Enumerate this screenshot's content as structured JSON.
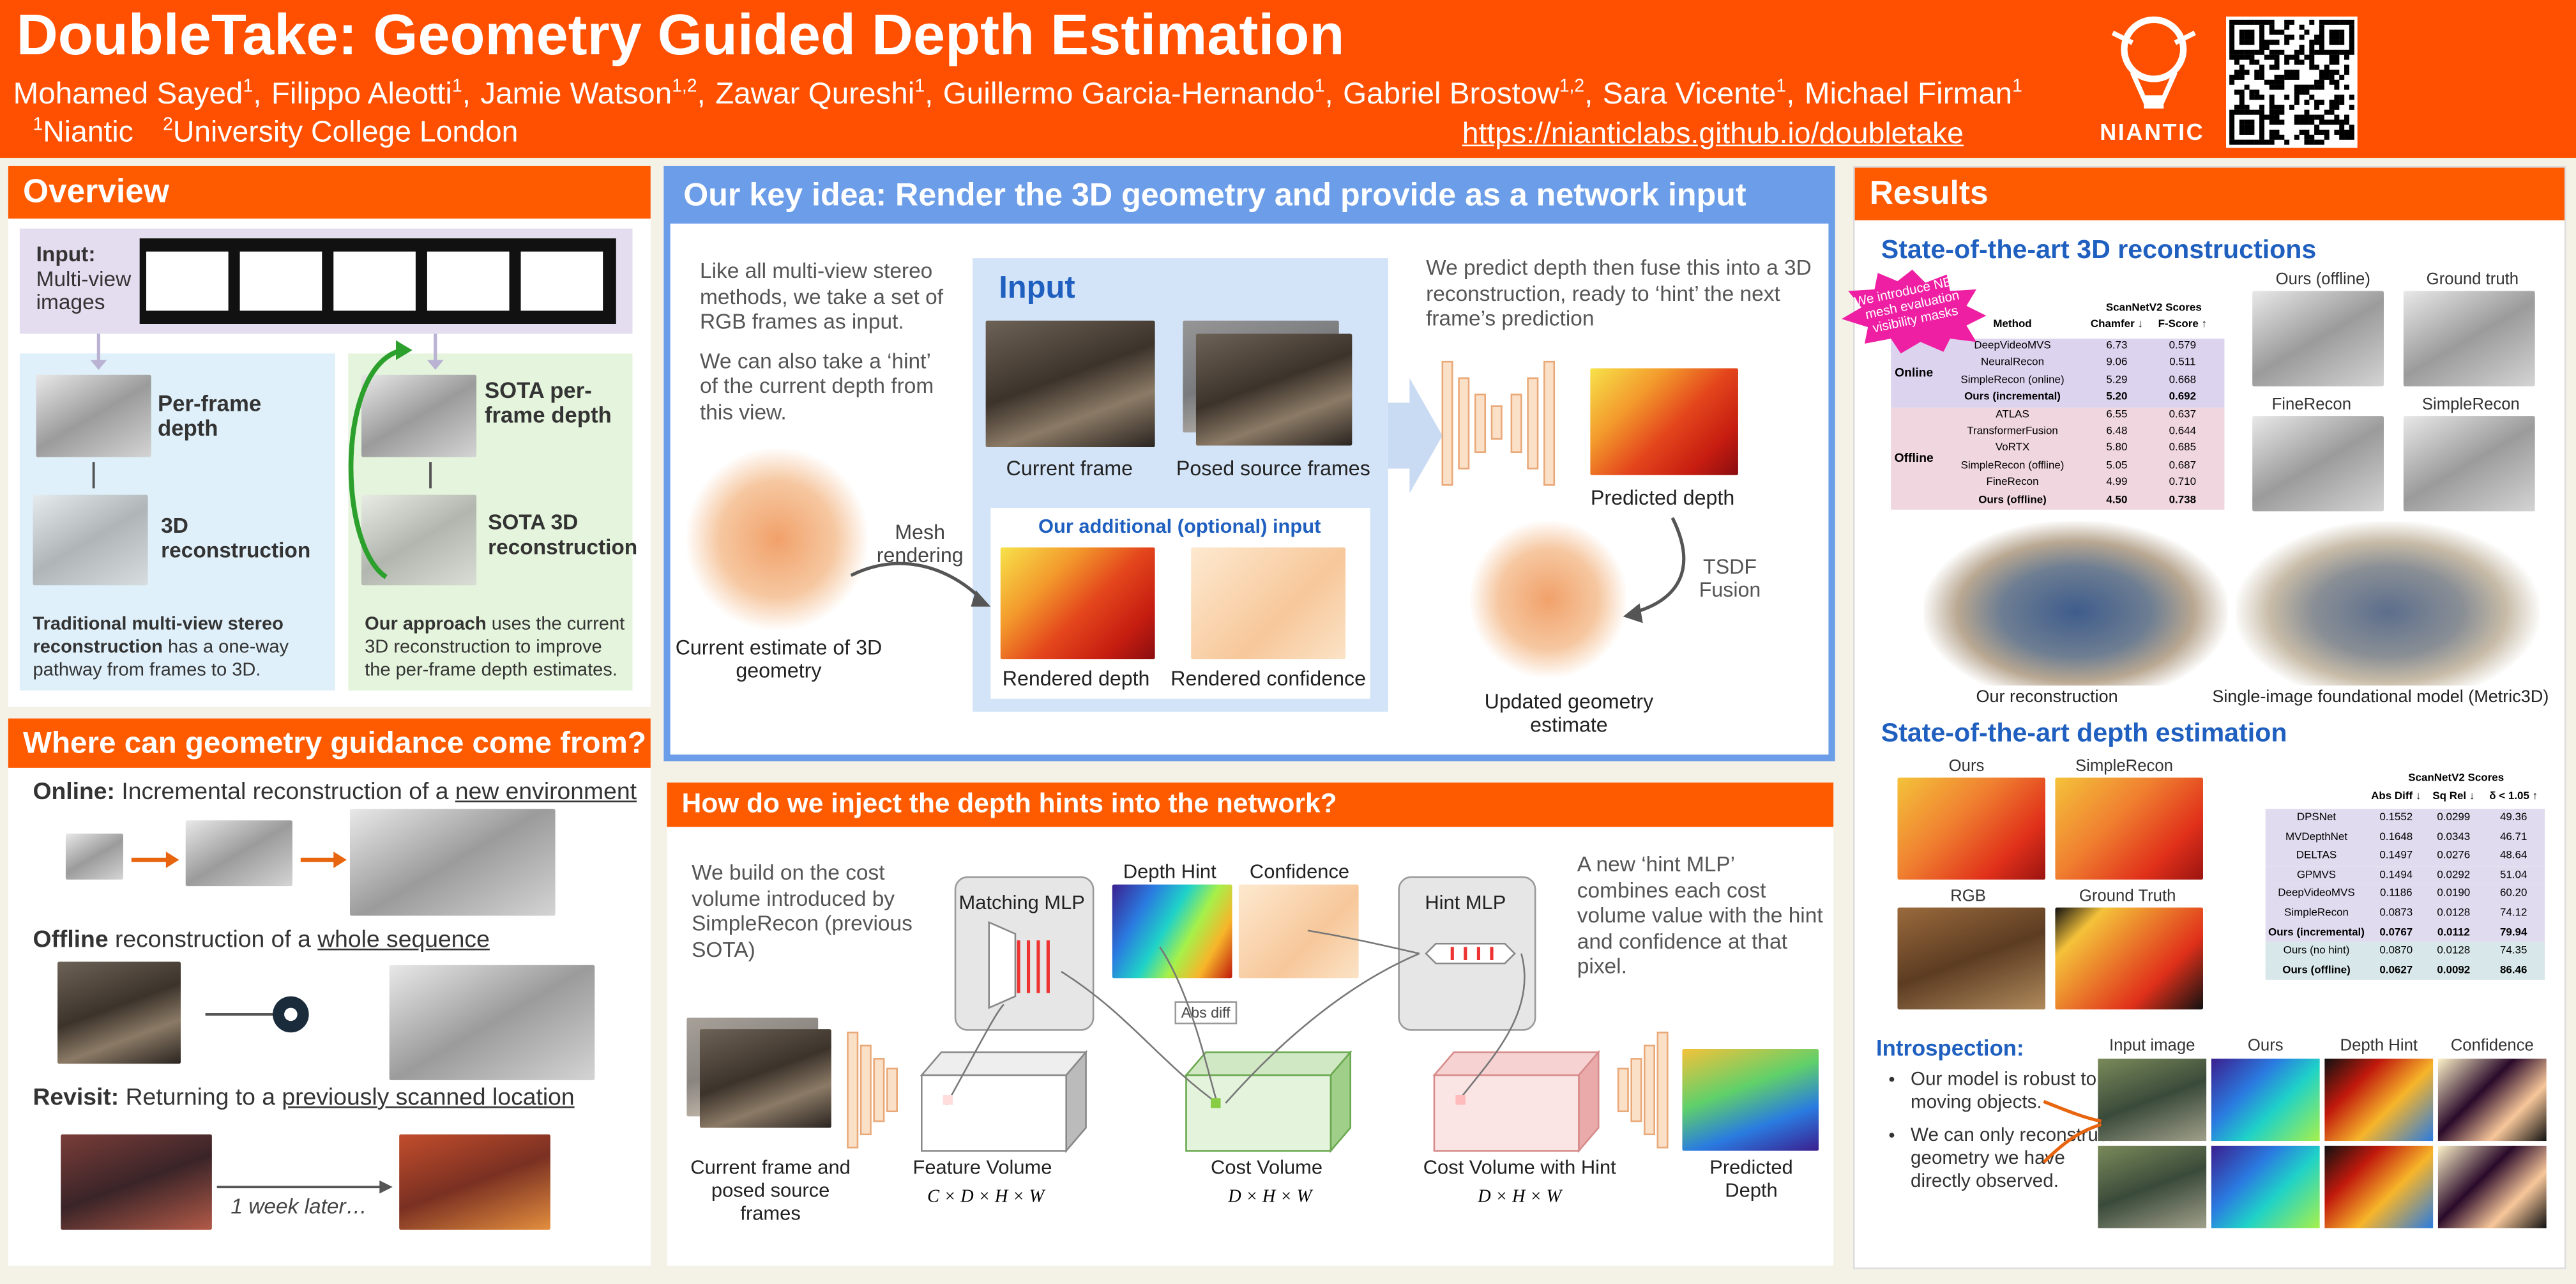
{
  "header": {
    "title": "DoubleTake: Geometry Guided Depth Estimation",
    "authors": [
      {
        "name": "Mohamed Sayed",
        "sup": "1"
      },
      {
        "name": "Filippo Aleotti",
        "sup": "1"
      },
      {
        "name": "Jamie Watson",
        "sup": "1,2"
      },
      {
        "name": "Zawar Qureshi",
        "sup": "1"
      },
      {
        "name": "Guillermo Garcia-Hernando",
        "sup": "1"
      },
      {
        "name": "Gabriel Brostow",
        "sup": "1,2"
      },
      {
        "name": "Sara Vicente",
        "sup": "1"
      },
      {
        "name": "Michael Firman",
        "sup": "1"
      }
    ],
    "author_separator": ",",
    "affiliations": [
      {
        "sup": "1",
        "name": "Niantic"
      },
      {
        "sup": "2",
        "name": "University College London"
      }
    ],
    "url": "https://nianticlabs.github.io/doubletake",
    "logo": "NIANTIC"
  },
  "overview": {
    "title": "Overview",
    "input_label": "Input:",
    "input_text": "Multi-view images",
    "left": {
      "depth": "Per-frame depth",
      "recon": "3D reconstruction",
      "caption_bold": "Traditional multi-view stereo reconstruction",
      "caption": " has a one-way pathway from frames to 3D."
    },
    "right": {
      "depth": "SOTA per-frame depth",
      "recon": "SOTA 3D reconstruction",
      "caption_bold": "Our approach",
      "caption": " uses the current 3D reconstruction to improve the per-frame depth estimates."
    }
  },
  "guidance": {
    "title": "Where can geometry guidance come from?",
    "items": [
      {
        "bold": "Online:",
        "text": " Incremental reconstruction of a ",
        "underline": "new environment"
      },
      {
        "bold": "Offline",
        "text": " reconstruction of a ",
        "underline": "whole sequence"
      },
      {
        "bold": "Revisit:",
        "text": " Returning to a ",
        "underline": "previously scanned location"
      }
    ],
    "later": "1 week later…"
  },
  "key_idea": {
    "title": "Our key idea: Render the 3D geometry and provide as a network input",
    "left_text": [
      "Like all multi-view stereo methods, we take a set of RGB frames as input.",
      "We can also take a ‘hint’ of the current depth from this view."
    ],
    "input_title": "Input",
    "current_frame": "Current frame",
    "source_frames": "Posed source frames",
    "optional_title": "Our additional (optional) input",
    "rendered_depth": "Rendered depth",
    "rendered_confidence": "Rendered confidence",
    "mesh_rendering": "Mesh rendering",
    "current_estimate": "Current estimate of 3D geometry",
    "right_text": "We predict depth then fuse this into a 3D reconstruction, ready to ‘hint’ the next frame’s prediction",
    "predicted_depth": "Predicted depth",
    "tsdf": "TSDF Fusion",
    "updated": "Updated geometry estimate"
  },
  "injection": {
    "title": "How do we inject the depth hints into the network?",
    "left_text": "We build on the cost volume introduced by SimpleRecon (previous SOTA)",
    "right_text": "A new ‘hint MLP’ combines each cost volume value with the hint and confidence at that pixel.",
    "matching_mlp": "Matching MLP",
    "depth_hint": "Depth Hint",
    "confidence": "Confidence",
    "hint_mlp": "Hint MLP",
    "abs_diff": "Abs diff",
    "frames": "Current frame and posed source frames",
    "feature_volume": "Feature Volume",
    "feature_dims": "C × D × H × W",
    "cost_volume": "Cost Volume",
    "cost_dims": "D × H × W",
    "hint_volume": "Cost Volume with Hint",
    "hint_dims": "D × H × W",
    "predicted": "Predicted Depth"
  },
  "results": {
    "title": "Results",
    "recon_heading": "State-of-the-art 3D reconstructions",
    "badge": "We introduce NEW mesh evaluation visibility masks",
    "recon_table": {
      "title": "ScanNetV2 Scores",
      "columns": [
        "Method",
        "Chamfer ↓",
        "F-Score ↑"
      ],
      "groups": [
        {
          "name": "Online",
          "rows": [
            [
              "DeepVideoMVS",
              "6.73",
              "0.579"
            ],
            [
              "NeuralRecon",
              "9.06",
              "0.511"
            ],
            [
              "SimpleRecon (online)",
              "5.29",
              "0.668"
            ],
            [
              "Ours (incremental)",
              "5.20",
              "0.692"
            ]
          ]
        },
        {
          "name": "Offline",
          "rows": [
            [
              "ATLAS",
              "6.55",
              "0.637"
            ],
            [
              "TransformerFusion",
              "6.48",
              "0.644"
            ],
            [
              "VoRTX",
              "5.80",
              "0.685"
            ],
            [
              "SimpleRecon (offline)",
              "5.05",
              "0.687"
            ],
            [
              "FineRecon",
              "4.99",
              "0.710"
            ],
            [
              "Ours (offline)",
              "4.50",
              "0.738"
            ]
          ]
        }
      ]
    },
    "recon_images": [
      "Ours (offline)",
      "Ground truth",
      "FineRecon",
      "SimpleRecon"
    ],
    "our_reconstruction": "Our reconstruction",
    "metric3d": "Single-image foundational model (Metric3D)",
    "depth_heading": "State-of-the-art depth estimation",
    "depth_images": [
      "Ours",
      "SimpleRecon",
      "RGB",
      "Ground Truth"
    ],
    "depth_table": {
      "title": "ScanNetV2 Scores",
      "columns": [
        "Abs Diff ↓",
        "Sq Rel ↓",
        "δ < 1.05 ↑"
      ],
      "rows": [
        [
          "DPSNet",
          "0.1552",
          "0.0299",
          "49.36"
        ],
        [
          "MVDepthNet",
          "0.1648",
          "0.0343",
          "46.71"
        ],
        [
          "DELTAS",
          "0.1497",
          "0.0276",
          "48.64"
        ],
        [
          "GPMVS",
          "0.1494",
          "0.0292",
          "51.04"
        ],
        [
          "DeepVideoMVS",
          "0.1186",
          "0.0190",
          "60.20"
        ],
        [
          "SimpleRecon",
          "0.0873",
          "0.0128",
          "74.12"
        ],
        [
          "Ours (incremental)",
          "0.0767",
          "0.0112",
          "79.94"
        ],
        [
          "Ours (no hint)",
          "0.0870",
          "0.0128",
          "74.35"
        ],
        [
          "Ours (offline)",
          "0.0627",
          "0.0092",
          "86.46"
        ]
      ]
    },
    "introspection": "Introspection:",
    "bullets": [
      "Our model is robust to moving objects.",
      "We can only reconstruct geometry we have directly observed."
    ],
    "intro_columns": [
      "Input image",
      "Ours",
      "Depth Hint",
      "Confidence"
    ]
  }
}
